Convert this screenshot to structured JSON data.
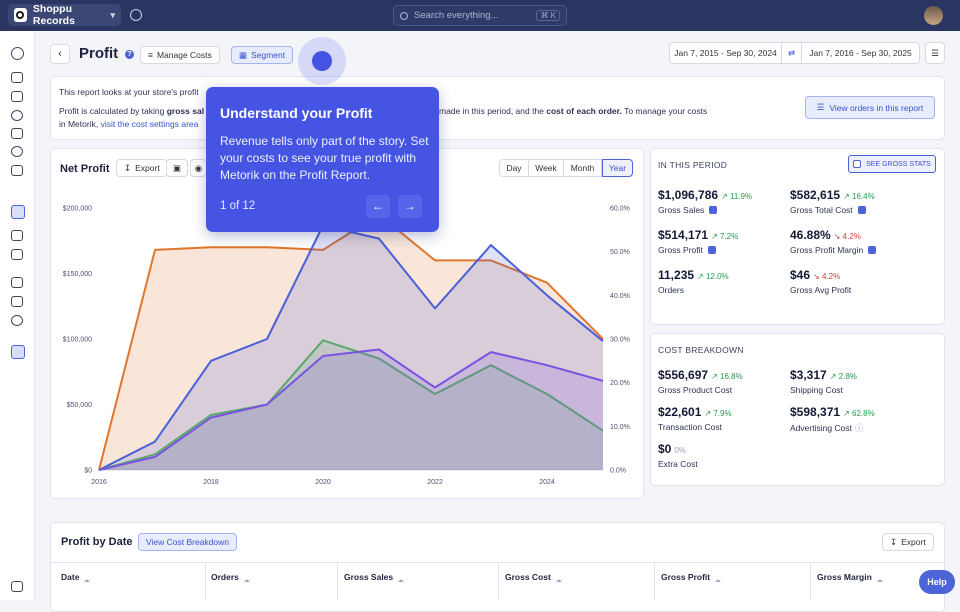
{
  "topbar": {
    "store_name": "Shoppu Records",
    "search_placeholder": "Search everything...",
    "search_shortcut": "⌘ K"
  },
  "header": {
    "title": "Profit",
    "manage_costs_label": "Manage Costs",
    "segment_label": "Segment",
    "compare_range": "Jan 7, 2015 - Sep 30, 2024",
    "current_range": "Jan 7, 2016 - Sep 30, 2025",
    "swap_icon": "swap-icon",
    "menu_icon": "menu-icon"
  },
  "info": {
    "line1": "This report looks at your store's profit",
    "line2a": "Profit is calculated by taking ",
    "line2b": "gross sal",
    "line2c": "made in this period, and the ",
    "line2d": "cost of each order.",
    "line2e": " To manage your costs",
    "line3a": "in Metorik, ",
    "line3b": "visit the cost settings area",
    "view_orders_label": "View orders in this report"
  },
  "chart_card": {
    "title": "Net Profit",
    "export_label": "Export",
    "ranges": [
      "Day",
      "Week",
      "Month",
      "Year"
    ],
    "selected_range": "Year"
  },
  "chart_data": {
    "type": "area",
    "x": [
      2016,
      2017,
      2018,
      2019,
      2020,
      2021,
      2022,
      2023,
      2024,
      2025
    ],
    "x_ticks": [
      "2016",
      "2018",
      "2020",
      "2022",
      "2024"
    ],
    "y_left_ticks": [
      "$200,000",
      "$150,000",
      "$100,000",
      "$50,000",
      "$0"
    ],
    "y_right_ticks": [
      "60.0%",
      "50.0%",
      "40.0%",
      "30.0%",
      "20.0%",
      "10.0%",
      "0.0%"
    ],
    "ylim_left": [
      0,
      200000
    ],
    "ylim_right": [
      0,
      60
    ],
    "series": [
      {
        "axis": "left",
        "color": "#e0762c",
        "values": [
          0,
          168000,
          170000,
          170000,
          168000,
          195000,
          160000,
          160000,
          143000,
          100000
        ]
      },
      {
        "axis": "right",
        "color": "#4a5fd8",
        "values": [
          0,
          6.5,
          25,
          30,
          56,
          53,
          37,
          51.5,
          40,
          29.5
        ]
      },
      {
        "axis": "left",
        "color": "#5aa86b",
        "values": [
          0,
          12000,
          42000,
          50000,
          99000,
          85000,
          58000,
          80000,
          58000,
          30000
        ]
      },
      {
        "axis": "left",
        "color": "#7a53e0",
        "values": [
          0,
          10000,
          40000,
          50000,
          87000,
          92000,
          63000,
          90000,
          80000,
          68000
        ]
      }
    ]
  },
  "period": {
    "heading": "IN THIS PERIOD",
    "see_gross_label": "SEE GROSS STATS",
    "stats": [
      {
        "value": "$1,096,786",
        "change": "11.9%",
        "dir": "up",
        "label": "Gross Sales",
        "checked": true
      },
      {
        "value": "$582,615",
        "change": "16.4%",
        "dir": "up",
        "label": "Gross Total Cost",
        "checked": true
      },
      {
        "value": "$514,171",
        "change": "7.2%",
        "dir": "up",
        "label": "Gross Profit",
        "checked": true
      },
      {
        "value": "46.88%",
        "change": "4.2%",
        "dir": "down",
        "label": "Gross Profit Margin",
        "checked": true
      },
      {
        "value": "11,235",
        "change": "12.0%",
        "dir": "up",
        "label": "Orders",
        "checked": false
      },
      {
        "value": "$46",
        "change": "4.2%",
        "dir": "down",
        "label": "Gross Avg Profit",
        "checked": false
      }
    ]
  },
  "costs": {
    "heading": "COST BREAKDOWN",
    "stats": [
      {
        "value": "$556,697",
        "change": "16.8%",
        "dir": "up",
        "label": "Gross Product Cost"
      },
      {
        "value": "$3,317",
        "change": "2.8%",
        "dir": "up",
        "label": "Shipping Cost"
      },
      {
        "value": "$22,601",
        "change": "7.9%",
        "dir": "up",
        "label": "Transaction Cost"
      },
      {
        "value": "$598,371",
        "change": "62.8%",
        "dir": "up",
        "label": "Advertising Cost"
      },
      {
        "value": "$0",
        "change": "0%",
        "dir": "flat",
        "label": "Extra Cost"
      }
    ]
  },
  "profit_by_date": {
    "title": "Profit by Date",
    "breakdown_label": "View Cost Breakdown",
    "export_label": "Export",
    "columns": [
      "Date",
      "Orders",
      "Gross Sales",
      "Gross Cost",
      "Gross Profit",
      "Gross Margin"
    ]
  },
  "tooltip": {
    "title": "Understand your Profit",
    "body": "Revenue tells only part of the story. Set your costs to see your true profit with Metorik on the Profit Report.",
    "step": "1 of 12"
  },
  "help_label": "Help"
}
